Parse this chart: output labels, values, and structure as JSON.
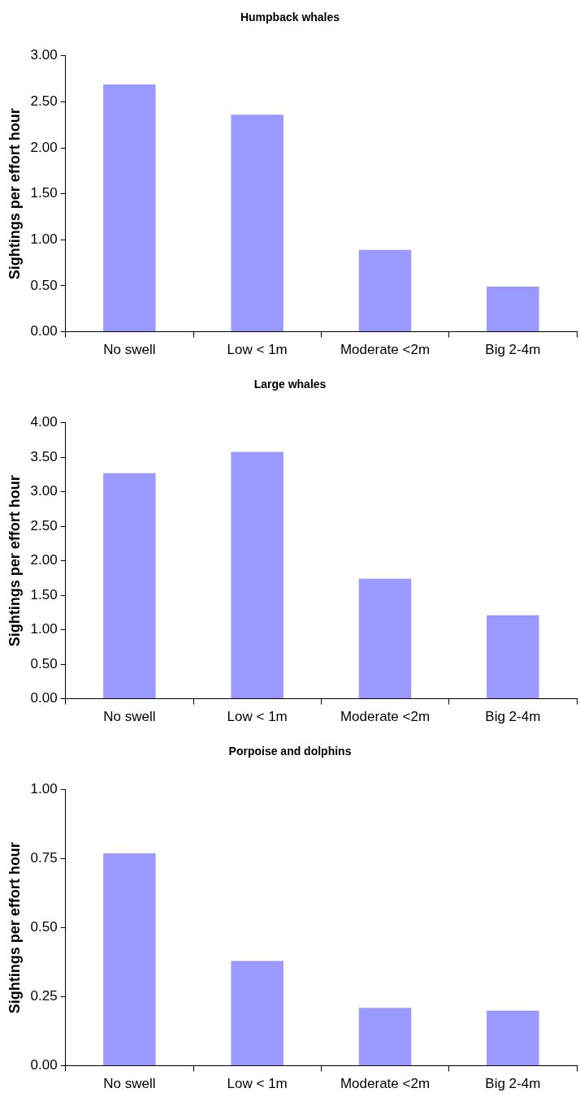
{
  "chart_data": [
    {
      "type": "bar",
      "title": "Humpback whales",
      "ylabel": "Sightings per effort hour",
      "categories": [
        "No swell",
        "Low < 1m",
        "Moderate <2m",
        "Big 2-4m"
      ],
      "values": [
        2.69,
        2.36,
        0.89,
        0.49
      ],
      "color": "#9999ff",
      "ylim": [
        0,
        3
      ],
      "yticks": [
        {
          "value": 0,
          "label": "0.00"
        },
        {
          "value": 0.5,
          "label": "0.50"
        },
        {
          "value": 1,
          "label": "1.00"
        },
        {
          "value": 1.5,
          "label": "1.50"
        },
        {
          "value": 2,
          "label": "2.00"
        },
        {
          "value": 2.5,
          "label": "2.50"
        },
        {
          "value": 3,
          "label": "3.00"
        }
      ],
      "grid": false,
      "legend": false
    },
    {
      "type": "bar",
      "title": "Large whales",
      "ylabel": "Sightings per effort hour",
      "categories": [
        "No swell",
        "Low < 1m",
        "Moderate <2m",
        "Big 2-4m"
      ],
      "values": [
        3.27,
        3.58,
        1.74,
        1.21
      ],
      "color": "#9999ff",
      "ylim": [
        0,
        4
      ],
      "yticks": [
        {
          "value": 0,
          "label": "0.00"
        },
        {
          "value": 0.5,
          "label": "0.50"
        },
        {
          "value": 1,
          "label": "1.00"
        },
        {
          "value": 1.5,
          "label": "1.50"
        },
        {
          "value": 2,
          "label": "2.00"
        },
        {
          "value": 2.5,
          "label": "2.50"
        },
        {
          "value": 3,
          "label": "3.00"
        },
        {
          "value": 3.5,
          "label": "3.50"
        },
        {
          "value": 4,
          "label": "4.00"
        }
      ],
      "grid": false,
      "legend": false
    },
    {
      "type": "bar",
      "title": "Porpoise and dolphins",
      "ylabel": "Sightings per effort hour",
      "categories": [
        "No swell",
        "Low < 1m",
        "Moderate <2m",
        "Big 2-4m"
      ],
      "values": [
        0.77,
        0.38,
        0.21,
        0.2
      ],
      "color": "#9999ff",
      "ylim": [
        0,
        1
      ],
      "yticks": [
        {
          "value": 0,
          "label": "0.00"
        },
        {
          "value": 0.25,
          "label": "0.25"
        },
        {
          "value": 0.5,
          "label": "0.50"
        },
        {
          "value": 0.75,
          "label": "0.75"
        },
        {
          "value": 1,
          "label": "1.00"
        }
      ],
      "grid": false,
      "legend": false
    }
  ]
}
